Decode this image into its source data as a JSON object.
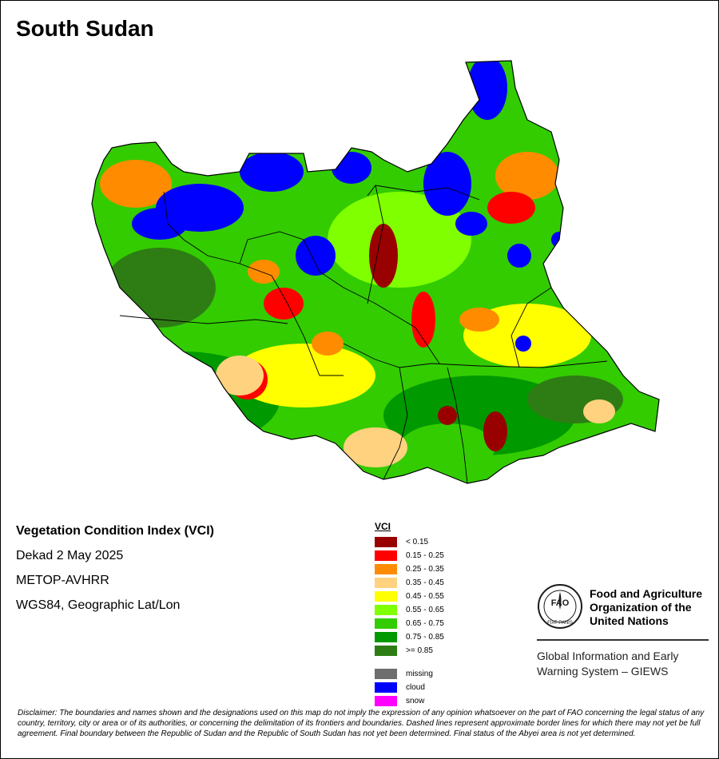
{
  "title": "South Sudan",
  "info": {
    "index_name": "Vegetation Condition Index (VCI)",
    "period": "Dekad 2 May 2025",
    "sensor": "METOP-AVHRR",
    "projection": "WGS84, Geographic Lat/Lon"
  },
  "legend": {
    "title": "VCI",
    "classes": [
      {
        "label": "< 0.15",
        "color": "#990000"
      },
      {
        "label": "0.15 - 0.25",
        "color": "#ff0000"
      },
      {
        "label": "0.25 - 0.35",
        "color": "#ff8c00"
      },
      {
        "label": "0.35 - 0.45",
        "color": "#ffd27f"
      },
      {
        "label": "0.45 - 0.55",
        "color": "#ffff00"
      },
      {
        "label": "0.55 - 0.65",
        "color": "#7fff00"
      },
      {
        "label": "0.65 - 0.75",
        "color": "#33cc00"
      },
      {
        "label": "0.75 - 0.85",
        "color": "#009900"
      },
      {
        "label": ">= 0.85",
        "color": "#2e7d14"
      }
    ],
    "other": [
      {
        "label": "missing",
        "color": "#6e6e6e"
      },
      {
        "label": "cloud",
        "color": "#0000ff"
      },
      {
        "label": "snow",
        "color": "#ff00ff"
      }
    ]
  },
  "organization": {
    "name_line1": "Food and Agriculture",
    "name_line2": "Organization of the",
    "name_line3": "United Nations",
    "logo_text": "FAO",
    "logo_ring_text": "FIAT PANIS",
    "system_line1": "Global Information and Early",
    "system_line2": "Warning System – GIEWS"
  },
  "disclaimer": "Disclaimer: The boundaries and names shown and the designations used on this map do not imply the expression of any opinion whatsoever on the part of FAO concerning the legal status of any country, territory, city or area or of its authorities, or concerning the delimitation of its frontiers and boundaries. Dashed lines represent approximate border lines for which there may not yet be full agreement.  Final boundary between the Republic of Sudan and the Republic of South Sudan has not yet been determined. Final status of the Abyei area is not yet determined.",
  "icons": {
    "logo": "fao-logo-icon"
  }
}
